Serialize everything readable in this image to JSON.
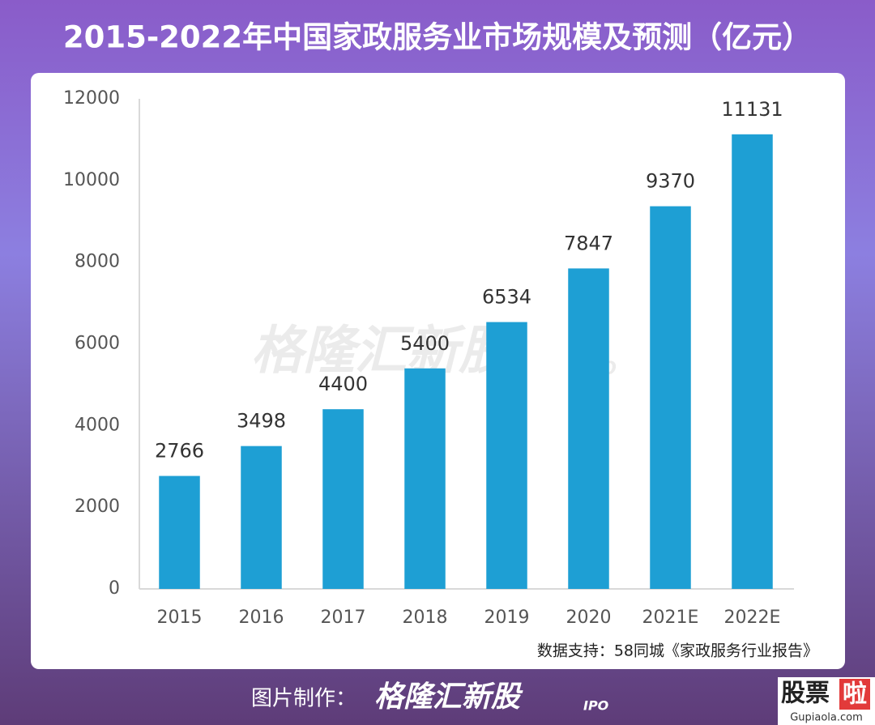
{
  "chart_data": {
    "type": "bar",
    "title": "2015-2022年中国家政服务业市场规模及预测（亿元）",
    "categories": [
      "2015",
      "2016",
      "2017",
      "2018",
      "2019",
      "2020",
      "2021E",
      "2022E"
    ],
    "values": [
      2766,
      3498,
      4400,
      5400,
      6534,
      7847,
      9370,
      11131
    ],
    "color": "#1e9fd4",
    "ylim": [
      0,
      12000
    ],
    "yticks": [
      0,
      2000,
      4000,
      6000,
      8000,
      10000,
      12000
    ],
    "grid": false,
    "source": "数据支持：58同城《家政服务行业报告》"
  },
  "watermark": {
    "brand": "格隆汇新股",
    "logo": "IPO"
  },
  "footer": {
    "label": "图片制作：",
    "brand": "格隆汇新股",
    "logo": "IPO"
  },
  "corner": {
    "name": "股票",
    "mark": "啦",
    "site": "Gupiaola.com"
  }
}
